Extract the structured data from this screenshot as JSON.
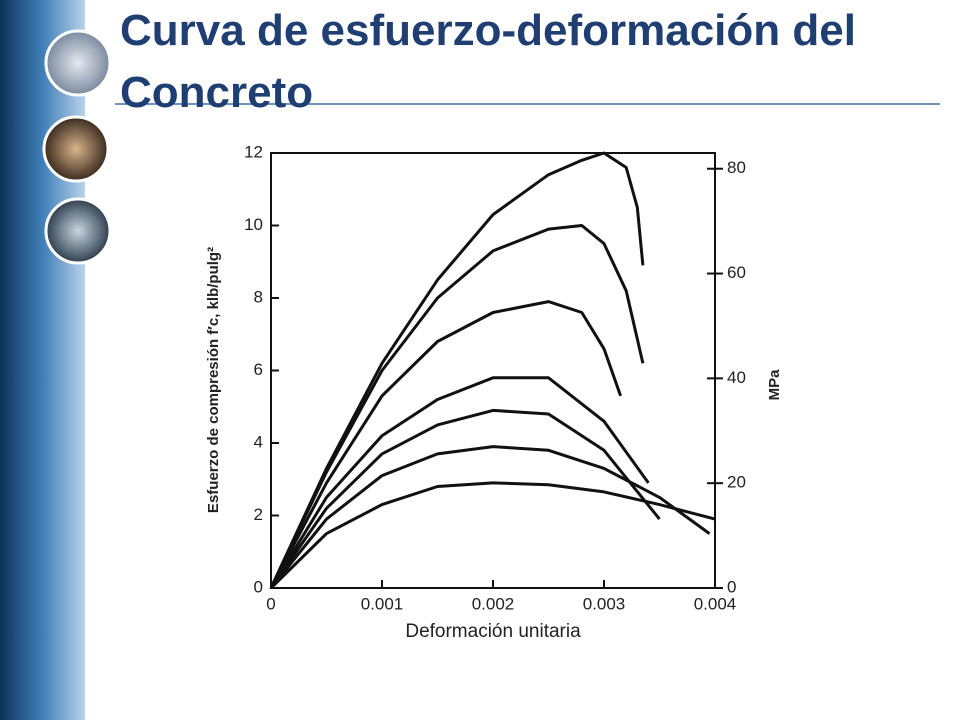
{
  "chart_data": {
    "type": "line",
    "title": "Curva de esfuerzo-deformación del Concreto",
    "x_label": "Deformación unitaria",
    "y_label": "Esfuerzo de compresión f′c, klb/pulg²",
    "y2_label": "MPa",
    "xlim": [
      0,
      0.004
    ],
    "xticks": [
      0,
      0.001,
      0.002,
      0.003,
      0.004
    ],
    "ylim": [
      0,
      12
    ],
    "yticks": [
      0,
      2,
      4,
      6,
      8,
      10,
      12
    ],
    "y2lim": [
      0,
      83
    ],
    "y2ticks": [
      0,
      20,
      40,
      60,
      80
    ],
    "color": "#111111",
    "series": [
      {
        "x": [
          0,
          0.0005,
          0.001,
          0.0015,
          0.002,
          0.0025,
          0.0028,
          0.003,
          0.0032,
          0.0033,
          0.00335
        ],
        "values": [
          0,
          3.3,
          6.2,
          8.5,
          10.3,
          11.4,
          11.8,
          12,
          11.6,
          10.5,
          8.9
        ]
      },
      {
        "x": [
          0,
          0.0005,
          0.001,
          0.0015,
          0.002,
          0.0025,
          0.0028,
          0.003,
          0.0032,
          0.00335
        ],
        "values": [
          0,
          3.2,
          6,
          8,
          9.3,
          9.9,
          10,
          9.5,
          8.2,
          6.2
        ]
      },
      {
        "x": [
          0,
          0.0005,
          0.001,
          0.0015,
          0.002,
          0.0025,
          0.0028,
          0.003,
          0.00315
        ],
        "values": [
          0,
          2.9,
          5.3,
          6.8,
          7.6,
          7.9,
          7.6,
          6.6,
          5.3
        ]
      },
      {
        "x": [
          0,
          0.0005,
          0.001,
          0.0015,
          0.002,
          0.0025,
          0.003,
          0.0034
        ],
        "values": [
          0,
          2.5,
          4.2,
          5.2,
          5.8,
          5.8,
          4.6,
          2.9
        ]
      },
      {
        "x": [
          0,
          0.0005,
          0.001,
          0.0015,
          0.002,
          0.0025,
          0.003,
          0.0035
        ],
        "values": [
          0,
          2.2,
          3.7,
          4.5,
          4.9,
          4.8,
          3.8,
          1.9
        ]
      },
      {
        "x": [
          0,
          0.0005,
          0.001,
          0.0015,
          0.002,
          0.0025,
          0.003,
          0.0035,
          0.00395
        ],
        "values": [
          0,
          1.9,
          3.1,
          3.7,
          3.9,
          3.8,
          3.3,
          2.5,
          1.5
        ]
      },
      {
        "x": [
          0,
          0.0005,
          0.001,
          0.0015,
          0.002,
          0.0025,
          0.003,
          0.0035,
          0.004
        ],
        "values": [
          0,
          1.5,
          2.3,
          2.8,
          2.9,
          2.85,
          2.65,
          2.3,
          1.9
        ]
      }
    ]
  }
}
